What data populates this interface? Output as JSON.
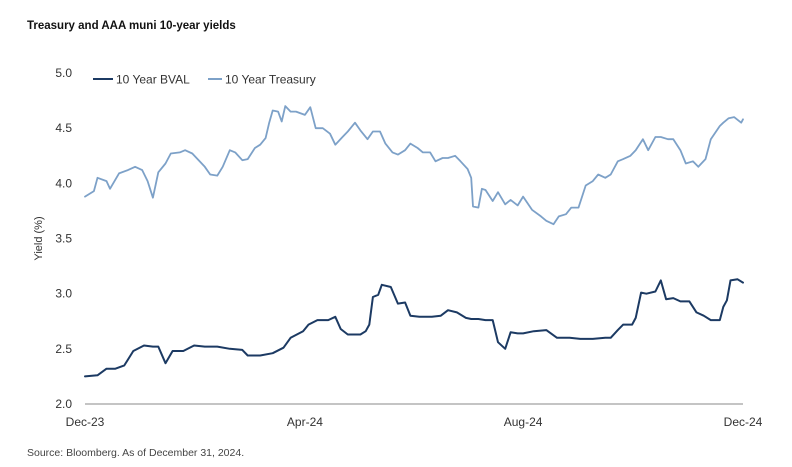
{
  "title": "Treasury and AAA muni 10-year yields",
  "source": "Source: Bloomberg. As of December 31, 2024.",
  "colors": {
    "bval": "#1c3a63",
    "treasury": "#7da1c8",
    "axis": "#888888",
    "text": "#333333"
  },
  "chart_data": {
    "type": "line",
    "title": "Treasury and AAA muni 10-year yields",
    "xlabel": "",
    "ylabel": "Yield (%)",
    "ylim": [
      2.0,
      5.0
    ],
    "yticks": [
      "2.0",
      "2.5",
      "3.0",
      "3.5",
      "4.0",
      "4.5",
      "5.0"
    ],
    "xticks": [
      {
        "label": "Dec-23",
        "date": "2023-12-29"
      },
      {
        "label": "Apr-24",
        "date": "2024-04-30"
      },
      {
        "label": "Aug-24",
        "date": "2024-08-30"
      },
      {
        "label": "Dec-24",
        "date": "2024-12-31"
      }
    ],
    "xlim": [
      "2023-12-29",
      "2024-12-31"
    ],
    "grid": false,
    "legend": "top-left",
    "series": [
      {
        "name": "10 Year BVAL",
        "color": "#1c3a63",
        "points": [
          [
            "2023-12-29",
            2.25
          ],
          [
            "2024-01-05",
            2.26
          ],
          [
            "2024-01-10",
            2.32
          ],
          [
            "2024-01-15",
            2.32
          ],
          [
            "2024-01-20",
            2.35
          ],
          [
            "2024-01-25",
            2.48
          ],
          [
            "2024-01-31",
            2.53
          ],
          [
            "2024-02-05",
            2.52
          ],
          [
            "2024-02-08",
            2.52
          ],
          [
            "2024-02-12",
            2.37
          ],
          [
            "2024-02-16",
            2.48
          ],
          [
            "2024-02-22",
            2.48
          ],
          [
            "2024-02-28",
            2.53
          ],
          [
            "2024-03-05",
            2.52
          ],
          [
            "2024-03-12",
            2.52
          ],
          [
            "2024-03-19",
            2.5
          ],
          [
            "2024-03-26",
            2.49
          ],
          [
            "2024-03-29",
            2.44
          ],
          [
            "2024-04-05",
            2.44
          ],
          [
            "2024-04-12",
            2.46
          ],
          [
            "2024-04-18",
            2.51
          ],
          [
            "2024-04-22",
            2.6
          ],
          [
            "2024-04-29",
            2.66
          ],
          [
            "2024-05-02",
            2.72
          ],
          [
            "2024-05-07",
            2.76
          ],
          [
            "2024-05-13",
            2.76
          ],
          [
            "2024-05-17",
            2.79
          ],
          [
            "2024-05-20",
            2.68
          ],
          [
            "2024-05-24",
            2.63
          ],
          [
            "2024-05-31",
            2.63
          ],
          [
            "2024-06-03",
            2.66
          ],
          [
            "2024-06-05",
            2.72
          ],
          [
            "2024-06-07",
            2.97
          ],
          [
            "2024-06-10",
            2.99
          ],
          [
            "2024-06-12",
            3.08
          ],
          [
            "2024-06-17",
            3.06
          ],
          [
            "2024-06-21",
            2.91
          ],
          [
            "2024-06-25",
            2.92
          ],
          [
            "2024-06-28",
            2.8
          ],
          [
            "2024-07-03",
            2.79
          ],
          [
            "2024-07-10",
            2.79
          ],
          [
            "2024-07-15",
            2.8
          ],
          [
            "2024-07-19",
            2.85
          ],
          [
            "2024-07-24",
            2.83
          ],
          [
            "2024-07-29",
            2.78
          ],
          [
            "2024-08-01",
            2.77
          ],
          [
            "2024-08-05",
            2.77
          ],
          [
            "2024-08-09",
            2.76
          ],
          [
            "2024-08-13",
            2.76
          ],
          [
            "2024-08-16",
            2.56
          ],
          [
            "2024-08-20",
            2.5
          ],
          [
            "2024-08-23",
            2.65
          ],
          [
            "2024-08-27",
            2.64
          ],
          [
            "2024-08-30",
            2.64
          ],
          [
            "2024-09-05",
            2.66
          ],
          [
            "2024-09-12",
            2.67
          ],
          [
            "2024-09-18",
            2.6
          ],
          [
            "2024-09-25",
            2.6
          ],
          [
            "2024-10-01",
            2.59
          ],
          [
            "2024-10-08",
            2.59
          ],
          [
            "2024-10-15",
            2.6
          ],
          [
            "2024-10-18",
            2.6
          ],
          [
            "2024-10-22",
            2.67
          ],
          [
            "2024-10-25",
            2.72
          ],
          [
            "2024-10-30",
            2.72
          ],
          [
            "2024-11-01",
            2.78
          ],
          [
            "2024-11-04",
            3.01
          ],
          [
            "2024-11-07",
            3.0
          ],
          [
            "2024-11-12",
            3.02
          ],
          [
            "2024-11-15",
            3.12
          ],
          [
            "2024-11-18",
            2.95
          ],
          [
            "2024-11-22",
            2.96
          ],
          [
            "2024-11-26",
            2.93
          ],
          [
            "2024-12-01",
            2.93
          ],
          [
            "2024-12-05",
            2.83
          ],
          [
            "2024-12-09",
            2.8
          ],
          [
            "2024-12-13",
            2.76
          ],
          [
            "2024-12-18",
            2.76
          ],
          [
            "2024-12-20",
            2.88
          ],
          [
            "2024-12-22",
            2.94
          ],
          [
            "2024-12-24",
            3.12
          ],
          [
            "2024-12-28",
            3.13
          ],
          [
            "2024-12-31",
            3.1
          ]
        ]
      },
      {
        "name": "10 Year Treasury",
        "color": "#7da1c8",
        "points": [
          [
            "2023-12-29",
            3.88
          ],
          [
            "2024-01-03",
            3.93
          ],
          [
            "2024-01-05",
            4.05
          ],
          [
            "2024-01-10",
            4.02
          ],
          [
            "2024-01-12",
            3.95
          ],
          [
            "2024-01-17",
            4.09
          ],
          [
            "2024-01-22",
            4.12
          ],
          [
            "2024-01-26",
            4.15
          ],
          [
            "2024-01-30",
            4.12
          ],
          [
            "2024-02-02",
            4.02
          ],
          [
            "2024-02-05",
            3.87
          ],
          [
            "2024-02-08",
            4.1
          ],
          [
            "2024-02-12",
            4.18
          ],
          [
            "2024-02-15",
            4.27
          ],
          [
            "2024-02-20",
            4.28
          ],
          [
            "2024-02-23",
            4.3
          ],
          [
            "2024-02-27",
            4.27
          ],
          [
            "2024-03-01",
            4.22
          ],
          [
            "2024-03-05",
            4.15
          ],
          [
            "2024-03-08",
            4.08
          ],
          [
            "2024-03-12",
            4.07
          ],
          [
            "2024-03-15",
            4.15
          ],
          [
            "2024-03-19",
            4.3
          ],
          [
            "2024-03-22",
            4.28
          ],
          [
            "2024-03-26",
            4.21
          ],
          [
            "2024-03-29",
            4.22
          ],
          [
            "2024-04-02",
            4.32
          ],
          [
            "2024-04-05",
            4.35
          ],
          [
            "2024-04-08",
            4.41
          ],
          [
            "2024-04-10",
            4.55
          ],
          [
            "2024-04-12",
            4.66
          ],
          [
            "2024-04-15",
            4.65
          ],
          [
            "2024-04-17",
            4.56
          ],
          [
            "2024-04-19",
            4.7
          ],
          [
            "2024-04-22",
            4.65
          ],
          [
            "2024-04-25",
            4.65
          ],
          [
            "2024-04-30",
            4.62
          ],
          [
            "2024-05-03",
            4.69
          ],
          [
            "2024-05-06",
            4.5
          ],
          [
            "2024-05-10",
            4.5
          ],
          [
            "2024-05-14",
            4.45
          ],
          [
            "2024-05-17",
            4.35
          ],
          [
            "2024-05-21",
            4.42
          ],
          [
            "2024-05-24",
            4.47
          ],
          [
            "2024-05-28",
            4.55
          ],
          [
            "2024-05-31",
            4.48
          ],
          [
            "2024-06-04",
            4.4
          ],
          [
            "2024-06-07",
            4.47
          ],
          [
            "2024-06-11",
            4.47
          ],
          [
            "2024-06-14",
            4.36
          ],
          [
            "2024-06-18",
            4.28
          ],
          [
            "2024-06-21",
            4.26
          ],
          [
            "2024-06-25",
            4.3
          ],
          [
            "2024-06-28",
            4.36
          ],
          [
            "2024-07-02",
            4.32
          ],
          [
            "2024-07-05",
            4.28
          ],
          [
            "2024-07-09",
            4.28
          ],
          [
            "2024-07-12",
            4.2
          ],
          [
            "2024-07-16",
            4.23
          ],
          [
            "2024-07-19",
            4.23
          ],
          [
            "2024-07-23",
            4.25
          ],
          [
            "2024-07-26",
            4.2
          ],
          [
            "2024-07-30",
            4.13
          ],
          [
            "2024-08-01",
            4.05
          ],
          [
            "2024-08-02",
            3.79
          ],
          [
            "2024-08-05",
            3.78
          ],
          [
            "2024-08-07",
            3.95
          ],
          [
            "2024-08-09",
            3.94
          ],
          [
            "2024-08-13",
            3.84
          ],
          [
            "2024-08-16",
            3.92
          ],
          [
            "2024-08-20",
            3.81
          ],
          [
            "2024-08-23",
            3.85
          ],
          [
            "2024-08-27",
            3.8
          ],
          [
            "2024-08-30",
            3.88
          ],
          [
            "2024-09-04",
            3.76
          ],
          [
            "2024-09-09",
            3.7
          ],
          [
            "2024-09-12",
            3.66
          ],
          [
            "2024-09-16",
            3.63
          ],
          [
            "2024-09-19",
            3.7
          ],
          [
            "2024-09-23",
            3.72
          ],
          [
            "2024-09-26",
            3.78
          ],
          [
            "2024-09-30",
            3.78
          ],
          [
            "2024-10-04",
            3.98
          ],
          [
            "2024-10-08",
            4.02
          ],
          [
            "2024-10-11",
            4.08
          ],
          [
            "2024-10-15",
            4.05
          ],
          [
            "2024-10-18",
            4.08
          ],
          [
            "2024-10-22",
            4.2
          ],
          [
            "2024-10-25",
            4.22
          ],
          [
            "2024-10-29",
            4.25
          ],
          [
            "2024-11-01",
            4.3
          ],
          [
            "2024-11-05",
            4.4
          ],
          [
            "2024-11-08",
            4.3
          ],
          [
            "2024-11-12",
            4.42
          ],
          [
            "2024-11-15",
            4.42
          ],
          [
            "2024-11-19",
            4.4
          ],
          [
            "2024-11-22",
            4.4
          ],
          [
            "2024-11-26",
            4.3
          ],
          [
            "2024-11-29",
            4.18
          ],
          [
            "2024-12-03",
            4.2
          ],
          [
            "2024-12-06",
            4.15
          ],
          [
            "2024-12-10",
            4.22
          ],
          [
            "2024-12-13",
            4.4
          ],
          [
            "2024-12-18",
            4.52
          ],
          [
            "2024-12-20",
            4.55
          ],
          [
            "2024-12-23",
            4.59
          ],
          [
            "2024-12-26",
            4.6
          ],
          [
            "2024-12-30",
            4.55
          ],
          [
            "2024-12-31",
            4.58
          ]
        ]
      }
    ]
  }
}
